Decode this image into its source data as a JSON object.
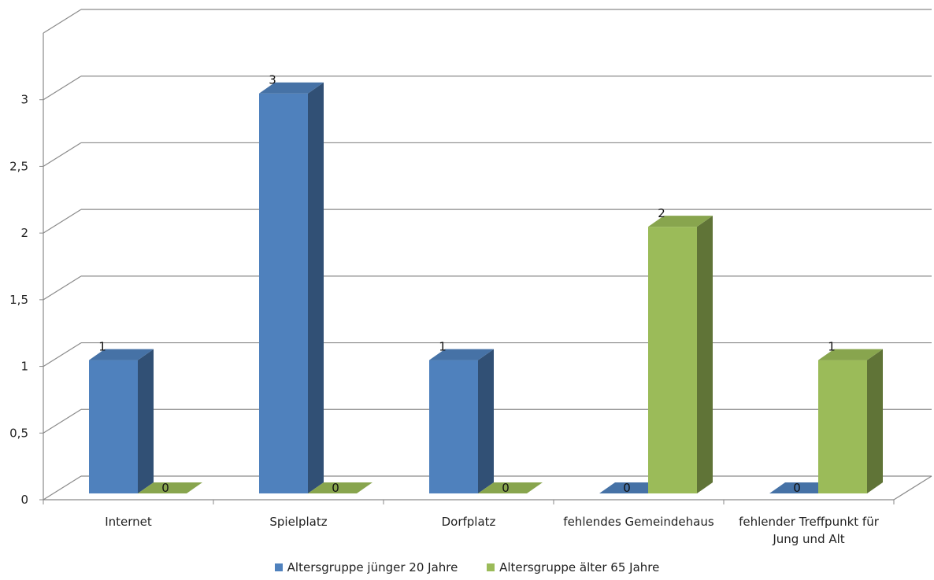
{
  "chart_data": {
    "type": "bar",
    "categories": [
      "Internet",
      "Spielplatz",
      "Dorfplatz",
      "fehlendes Gemeindehaus",
      "fehlender Treffpunkt für\nJung und Alt"
    ],
    "series": [
      {
        "name": "Altersgruppe jünger 20 Jahre",
        "values": [
          1,
          3,
          1,
          0,
          0
        ],
        "color": "#4F81BD"
      },
      {
        "name": "Altersgruppe älter 65 Jahre",
        "values": [
          0,
          0,
          0,
          2,
          1
        ],
        "color": "#9BBB59"
      }
    ],
    "y_tick_labels": [
      "0",
      "0,5",
      "1",
      "1,5",
      "2",
      "2,5",
      "3"
    ],
    "ylim": [
      0,
      3.5
    ],
    "grid": true,
    "legend_position": "bottom",
    "data_labels": true,
    "style": "3d-clustered-column"
  }
}
